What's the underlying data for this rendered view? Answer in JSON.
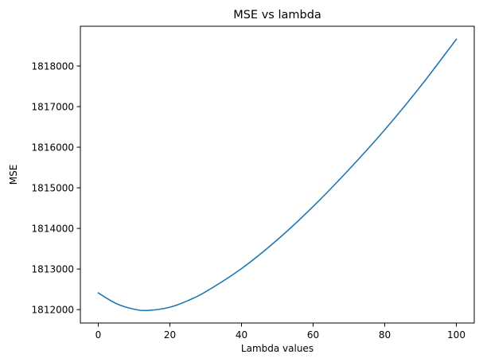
{
  "chart_data": {
    "type": "line",
    "title": "MSE vs lambda",
    "xlabel": "Lambda values",
    "ylabel": "MSE",
    "xlim": [
      -5,
      105
    ],
    "ylim": [
      1811670,
      1818980
    ],
    "xticks": [
      0,
      20,
      40,
      60,
      80,
      100
    ],
    "xtick_labels": [
      "0",
      "20",
      "40",
      "60",
      "80",
      "100"
    ],
    "yticks": [
      1812000,
      1813000,
      1814000,
      1815000,
      1816000,
      1817000,
      1818000
    ],
    "ytick_labels": [
      "1812000",
      "1813000",
      "1814000",
      "1815000",
      "1816000",
      "1817000",
      "1818000"
    ],
    "grid": false,
    "legend": "none",
    "series": [
      {
        "color": "#1f77b4",
        "x": [
          0,
          5,
          10,
          14,
          20,
          25,
          30,
          40,
          50,
          60,
          70,
          80,
          90,
          100
        ],
        "y": [
          1812410,
          1812150,
          1812010,
          1811980,
          1812060,
          1812220,
          1812440,
          1813010,
          1813720,
          1814540,
          1815450,
          1816430,
          1817500,
          1818660
        ]
      }
    ]
  }
}
